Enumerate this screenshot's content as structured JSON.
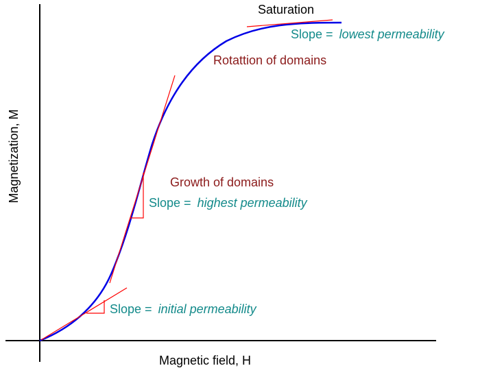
{
  "axes": {
    "x_label": "Magnetic field, H",
    "y_label": "Magnetization, M"
  },
  "annotations": {
    "saturation": "Saturation",
    "rotation": "Rotattion of domains",
    "growth": "Growth of  domains",
    "slope_prefix": "Slope =",
    "lowest": "lowest permeability",
    "highest": "highest permeability",
    "initial": "initial permeability"
  },
  "colors": {
    "curve": "#0000e6",
    "tangent": "#ff0000",
    "axes": "#000000",
    "slope_text": "#138a8a",
    "region_text": "#8b1a1a"
  }
}
